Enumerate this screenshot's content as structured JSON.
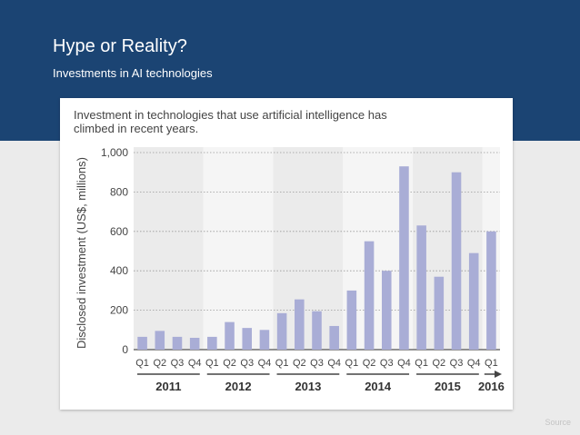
{
  "slide": {
    "title": "Hype or Reality?",
    "subtitle": "Investments in AI technologies",
    "source_label": "Source"
  },
  "colors": {
    "header_bg": "#1b4473",
    "bar": "#a9add6",
    "band_shaded": "#ebebeb",
    "band_light": "#f5f5f5"
  },
  "chart_data": {
    "type": "bar",
    "title": "Investment in technologies that use artificial intelligence has climbed in recent years.",
    "ylabel": "Disclosed investment (US$, millions)",
    "xlabel": "",
    "ylim": [
      0,
      1000
    ],
    "yticks": [
      0,
      200,
      400,
      600,
      800,
      "1,000"
    ],
    "grid": true,
    "categories": [
      "Q1",
      "Q2",
      "Q3",
      "Q4",
      "Q1",
      "Q2",
      "Q3",
      "Q4",
      "Q1",
      "Q2",
      "Q3",
      "Q4",
      "Q1",
      "Q2",
      "Q3",
      "Q4",
      "Q1",
      "Q2",
      "Q3",
      "Q4",
      "Q1"
    ],
    "values": [
      65,
      95,
      65,
      60,
      65,
      140,
      110,
      100,
      185,
      255,
      195,
      120,
      300,
      550,
      400,
      930,
      630,
      370,
      900,
      490,
      600
    ],
    "years": [
      {
        "label": "2011",
        "count": 4
      },
      {
        "label": "2012",
        "count": 4
      },
      {
        "label": "2013",
        "count": 4
      },
      {
        "label": "2014",
        "count": 4
      },
      {
        "label": "2015",
        "count": 4
      },
      {
        "label": "2016",
        "count": 1
      }
    ]
  }
}
